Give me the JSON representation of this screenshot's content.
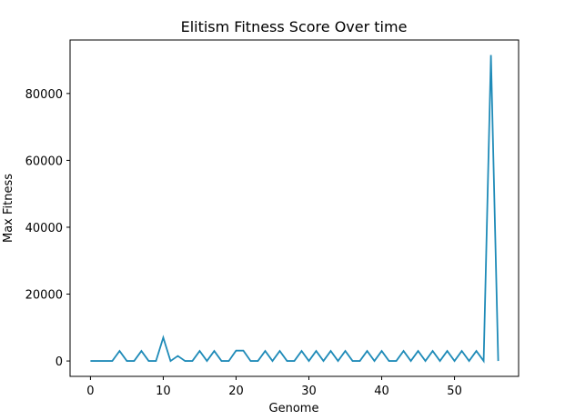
{
  "chart_data": {
    "type": "line",
    "title": "Elitism Fitness Score Over time",
    "xlabel": "Genome",
    "ylabel": "Max Fitness",
    "xlim": [
      -2.8,
      58.8
    ],
    "ylim": [
      -4600,
      96000
    ],
    "xticks": [
      0,
      10,
      20,
      30,
      40,
      50
    ],
    "yticks": [
      0,
      20000,
      40000,
      60000,
      80000
    ],
    "grid": false,
    "legend": "none",
    "line_color": "#1f8bb8",
    "series": [
      {
        "x": [
          0,
          1,
          2,
          3,
          4,
          5,
          6,
          7,
          8,
          9,
          10,
          11,
          12,
          13,
          14,
          15,
          16,
          17,
          18,
          19,
          20,
          21,
          22,
          23,
          24,
          25,
          26,
          27,
          28,
          29,
          30,
          31,
          32,
          33,
          34,
          35,
          36,
          37,
          38,
          39,
          40,
          41,
          42,
          43,
          44,
          45,
          46,
          47,
          48,
          49,
          50,
          51,
          52,
          53,
          54,
          55,
          56
        ],
        "values": [
          0,
          0,
          0,
          0,
          3000,
          0,
          0,
          3000,
          0,
          0,
          7000,
          0,
          1500,
          0,
          0,
          3000,
          0,
          3000,
          0,
          0,
          3100,
          3100,
          0,
          0,
          3000,
          0,
          3000,
          0,
          0,
          3000,
          0,
          3000,
          0,
          3000,
          0,
          3000,
          0,
          0,
          3000,
          0,
          3000,
          0,
          0,
          3000,
          0,
          3000,
          0,
          3000,
          0,
          3000,
          0,
          3000,
          0,
          3000,
          0,
          91500,
          0
        ]
      }
    ]
  }
}
